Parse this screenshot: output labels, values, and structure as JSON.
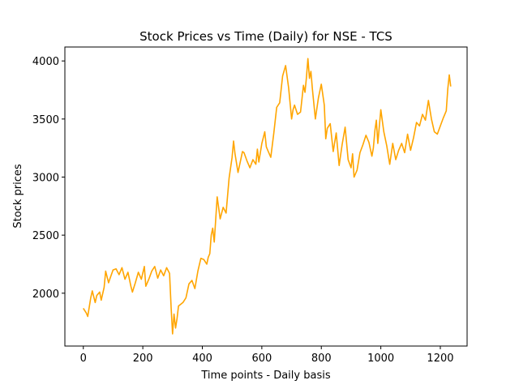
{
  "chart_data": {
    "type": "line",
    "title": "Stock Prices vs Time (Daily) for NSE - TCS",
    "xlabel": "Time points - Daily basis",
    "ylabel": "Stock prices",
    "xlim": [
      -62,
      1290
    ],
    "ylim": [
      1545,
      4120
    ],
    "xticks": [
      0,
      200,
      400,
      600,
      800,
      1000,
      1200
    ],
    "yticks": [
      2000,
      2500,
      3000,
      3500,
      4000
    ],
    "xtick_labels": [
      "0",
      "200",
      "400",
      "600",
      "800",
      "1000",
      "1200"
    ],
    "ytick_labels": [
      "2000",
      "2500",
      "3000",
      "3500",
      "4000"
    ],
    "grid": false,
    "series": [
      {
        "color": "#ffa500",
        "x": [
          0,
          10,
          15,
          25,
          30,
          40,
          45,
          55,
          60,
          70,
          75,
          85,
          90,
          100,
          110,
          120,
          130,
          140,
          150,
          160,
          165,
          175,
          185,
          195,
          205,
          210,
          220,
          230,
          240,
          250,
          260,
          270,
          280,
          290,
          295,
          300,
          305,
          310,
          315,
          320,
          325,
          335,
          345,
          355,
          365,
          375,
          385,
          395,
          405,
          415,
          420,
          425,
          430,
          435,
          440,
          450,
          460,
          470,
          480,
          490,
          500,
          505,
          510,
          520,
          530,
          535,
          540,
          550,
          560,
          570,
          580,
          585,
          590,
          600,
          610,
          615,
          620,
          630,
          640,
          650,
          660,
          670,
          680,
          690,
          700,
          705,
          710,
          720,
          730,
          740,
          745,
          750,
          755,
          760,
          765,
          770,
          780,
          790,
          795,
          800,
          810,
          815,
          820,
          830,
          840,
          850,
          860,
          870,
          880,
          890,
          900,
          905,
          910,
          920,
          930,
          940,
          950,
          960,
          970,
          975,
          980,
          985,
          990,
          1000,
          1010,
          1020,
          1030,
          1040,
          1050,
          1060,
          1070,
          1080,
          1090,
          1100,
          1110,
          1120,
          1130,
          1140,
          1150,
          1160,
          1170,
          1180,
          1190,
          1200,
          1210,
          1220,
          1225,
          1230,
          1235
        ],
        "y": [
          1870,
          1830,
          1800,
          1960,
          2020,
          1920,
          1980,
          2010,
          1940,
          2050,
          2190,
          2090,
          2130,
          2200,
          2210,
          2160,
          2220,
          2120,
          2180,
          2060,
          2010,
          2090,
          2180,
          2120,
          2230,
          2060,
          2120,
          2190,
          2230,
          2130,
          2200,
          2150,
          2220,
          2170,
          1880,
          1650,
          1820,
          1700,
          1780,
          1890,
          1900,
          1920,
          1960,
          2080,
          2110,
          2040,
          2190,
          2300,
          2290,
          2250,
          2310,
          2340,
          2500,
          2560,
          2440,
          2830,
          2640,
          2740,
          2690,
          2990,
          3170,
          3310,
          3200,
          3040,
          3160,
          3220,
          3210,
          3140,
          3080,
          3150,
          3110,
          3240,
          3130,
          3290,
          3390,
          3260,
          3230,
          3170,
          3370,
          3600,
          3640,
          3870,
          3960,
          3770,
          3500,
          3580,
          3620,
          3540,
          3560,
          3790,
          3730,
          3860,
          4020,
          3850,
          3910,
          3760,
          3500,
          3680,
          3740,
          3800,
          3620,
          3330,
          3420,
          3460,
          3220,
          3380,
          3100,
          3280,
          3430,
          3150,
          3080,
          3200,
          3000,
          3060,
          3210,
          3280,
          3360,
          3300,
          3180,
          3250,
          3400,
          3490,
          3290,
          3580,
          3390,
          3270,
          3110,
          3290,
          3150,
          3230,
          3290,
          3210,
          3370,
          3230,
          3340,
          3470,
          3440,
          3540,
          3490,
          3660,
          3500,
          3390,
          3370,
          3440,
          3510,
          3570,
          3760,
          3880,
          3780
        ]
      }
    ]
  }
}
